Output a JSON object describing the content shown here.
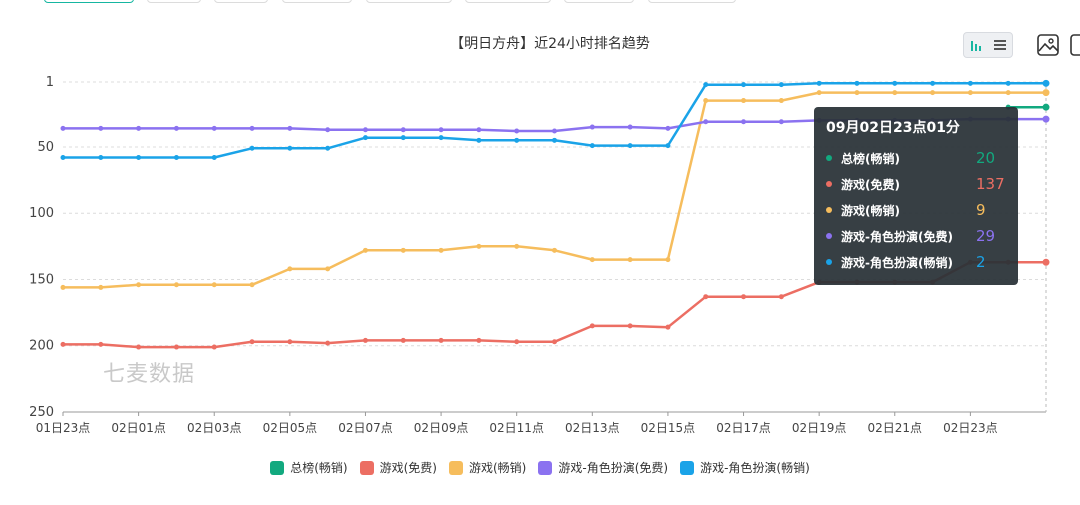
{
  "title": "【明日方舟】近24小时排名趋势",
  "watermark": "七麦数据",
  "toolbar": {
    "icons": [
      "bar-chart-icon",
      "list-icon",
      "save-image-icon",
      "more-icon"
    ]
  },
  "tooltip": {
    "title": "09月02日23点01分",
    "rows": [
      {
        "name": "总榜(畅销)",
        "value": "20",
        "color": "#12a97f"
      },
      {
        "name": "游戏(免费)",
        "value": "137",
        "color": "#ec6e63"
      },
      {
        "name": "游戏(畅销)",
        "value": "9",
        "color": "#f6bd5d"
      },
      {
        "name": "游戏-角色扮演(免费)",
        "value": "29",
        "color": "#8b72f0"
      },
      {
        "name": "游戏-角色扮演(畅销)",
        "value": "2",
        "color": "#1aa3e8"
      }
    ]
  },
  "chart_data": {
    "type": "line",
    "title": "【明日方舟】近24小时排名趋势",
    "y_reversed": true,
    "ylim": [
      1,
      250
    ],
    "yticks": [
      "1",
      "50",
      "100",
      "150",
      "200",
      "250"
    ],
    "xtick_labels": [
      "01日23点",
      "02日01点",
      "02日03点",
      "02日05点",
      "02日07点",
      "02日09点",
      "02日11点",
      "02日13点",
      "02日15点",
      "02日17点",
      "02日19点",
      "02日21点",
      "02日23点"
    ],
    "grid": "horizontal-dashed",
    "legend_position": "bottom",
    "series": [
      {
        "name": "总榜(畅销)",
        "color": "#12a97f",
        "values": [
          null,
          null,
          null,
          null,
          null,
          null,
          null,
          null,
          null,
          null,
          null,
          null,
          null,
          null,
          null,
          null,
          null,
          null,
          null,
          null,
          null,
          null,
          null,
          null,
          null,
          20,
          20
        ]
      },
      {
        "name": "游戏(免费)",
        "color": "#ec6e63",
        "values": [
          199,
          199,
          201,
          201,
          201,
          197,
          197,
          198,
          196,
          196,
          196,
          196,
          197,
          197,
          185,
          185,
          186,
          163,
          163,
          163,
          152,
          152,
          152,
          152,
          137,
          137,
          137
        ]
      },
      {
        "name": "游戏(畅销)",
        "color": "#f6bd5d",
        "values": [
          156,
          156,
          154,
          154,
          154,
          154,
          142,
          142,
          128,
          128,
          128,
          125,
          125,
          128,
          135,
          135,
          135,
          15,
          15,
          15,
          9,
          9,
          9,
          9,
          9,
          9,
          9
        ]
      },
      {
        "name": "游戏-角色扮演(免费)",
        "color": "#8b72f0",
        "values": [
          36,
          36,
          36,
          36,
          36,
          36,
          36,
          37,
          37,
          37,
          37,
          37,
          38,
          38,
          35,
          35,
          36,
          31,
          31,
          31,
          30,
          30,
          30,
          30,
          29,
          29,
          29
        ]
      },
      {
        "name": "游戏-角色扮演(畅销)",
        "color": "#1aa3e8",
        "values": [
          58,
          58,
          58,
          58,
          58,
          51,
          51,
          51,
          43,
          43,
          43,
          45,
          45,
          45,
          49,
          49,
          49,
          3,
          3,
          3,
          2,
          2,
          2,
          2,
          2,
          2,
          2
        ]
      }
    ]
  }
}
